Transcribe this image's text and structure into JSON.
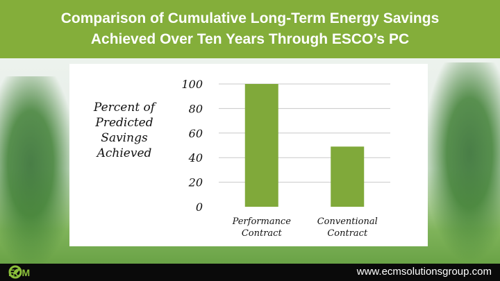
{
  "title": "Comparison of Cumulative Long-Term Energy Savings\nAchieved Over Ten Years Through  ESCO’s PC",
  "footer": {
    "logo_text": "ECM",
    "website": "www.ecmsolutionsgroup.com"
  },
  "colors": {
    "title_band": "#84ae3a",
    "bar": "#80a93a",
    "footer": "#0a0a0a"
  },
  "chart_data": {
    "type": "bar",
    "ylabel": "Percent of Predicted Savings Achieved",
    "categories": [
      "Performance Contract",
      "Conventional Contract"
    ],
    "category_lines": [
      [
        "Performance",
        "Contract"
      ],
      [
        "Conventional",
        "Contract"
      ]
    ],
    "values": [
      100,
      49
    ],
    "ylim": [
      0,
      100
    ],
    "yticks": [
      0,
      20,
      40,
      60,
      80,
      100
    ],
    "grid": true,
    "legend": "none"
  }
}
